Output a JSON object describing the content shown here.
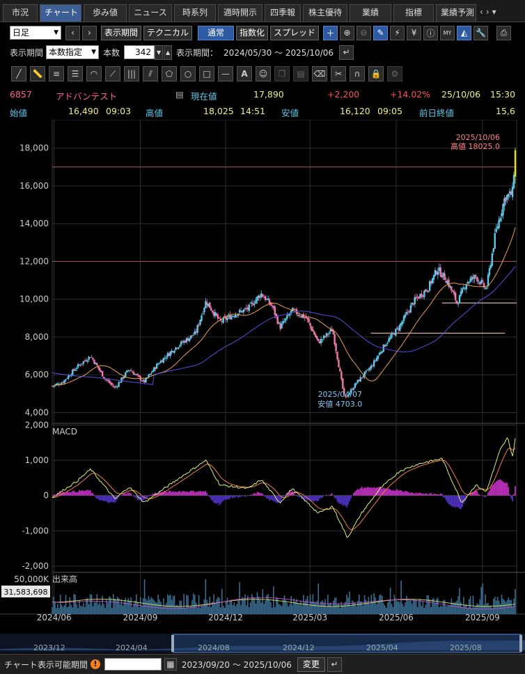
{
  "tabs": [
    "市況",
    "チャート",
    "歩み値",
    "ニュース",
    "時系列",
    "適時開示",
    "四季報",
    "株主優待",
    "業績",
    "指標",
    "業績予測"
  ],
  "active_tab": "チャート",
  "toolbar1": {
    "period_select": "日足",
    "display_period_btn": "表示期間",
    "technical_btn": "テクニカル",
    "normal_btn": "通常",
    "index_btn": "指数化",
    "spread_btn": "スプレッド",
    "icons": [
      "plus-icon",
      "zoom-in-icon",
      "zoom-out-icon",
      "pen-icon",
      "pattern-icon",
      "yen-icon",
      "info-icon",
      "my-chart-icon",
      "area-chart-icon",
      "settings-wrench-icon",
      "print-icon"
    ]
  },
  "toolbar2": {
    "period_label": "表示期間",
    "period_mode": "本数指定",
    "count_label": "本数",
    "count_value": "342",
    "range_label": "表示期間：",
    "range_value": "2024/05/30 ～ 2025/10/06"
  },
  "drawing_tools": [
    "line-tool-icon",
    "ruler-tool-icon",
    "h-lines-tool-icon",
    "fib-lines-tool-icon",
    "arc-tool-icon",
    "fan-tool-icon",
    "v-lines-tool-icon",
    "gann-tool-icon",
    "pentagon-tool-icon",
    "circle-tool-icon",
    "rect-tool-icon",
    "hline-tool-icon",
    "text-tool-icon",
    "icon-tool-icon",
    "copy-tool-icon",
    "paste-tool-icon",
    "erase-tool-icon",
    "erase-all-tool-icon",
    "magnet-tool-icon",
    "lock-tool-icon",
    "gear-tool-icon"
  ],
  "quote": {
    "code": "6857",
    "name": "アドバンテスト",
    "current_label": "現在値",
    "current_value": "17,890",
    "change": "+2,200",
    "change_pct": "+14.02%",
    "date": "25/10/06",
    "time": "15:30",
    "open_label": "始値",
    "open_value": "16,490",
    "open_time": "09:03",
    "high_label": "高値",
    "high_value": "18,025",
    "high_time": "14:51",
    "low_label": "安値",
    "low_value": "16,120",
    "low_time": "09:05",
    "prev_label": "前日終値",
    "prev_value": "15,6"
  },
  "colors": {
    "up": "#5ec8e8",
    "down": "#f07ab0",
    "ma_short": "#f0a050",
    "ma_long": "#5050e0",
    "macd": "#e0f070",
    "signal": "#f08050",
    "hist": "#c040a0",
    "price_text": "#f0f080",
    "positive": "#ff5050"
  },
  "chart_data": {
    "type": "candlestick",
    "title": "",
    "series_labels": [
      "MACD",
      "出来高"
    ],
    "x_ticks": [
      "2024/06",
      "2024/09",
      "2024/12",
      "2025/03",
      "2025/06",
      "2025/09"
    ],
    "y_ticks": [
      "18,000",
      "16,000",
      "14,000",
      "12,000",
      "10,000",
      "8,000",
      "6,000",
      "4,000"
    ],
    "ylim": [
      3500,
      19500
    ],
    "macd_ticks": [
      "2,000",
      "1,000",
      "0",
      "-1,000",
      "-2,000"
    ],
    "macd_ylim": [
      -2100,
      2050
    ],
    "volume_ticks": [
      "50,000K"
    ],
    "volume_current": "31,583,698",
    "annotations": {
      "high_date": "2025/10/06",
      "high_text": "高値 18025.0",
      "low_date": "2025/04/07",
      "low_text": "安値 4703.0"
    },
    "h_lines": [
      17000,
      12000
    ],
    "support_lines": [
      [
        9800,
        "2025/07"
      ],
      [
        8200,
        "2025/05"
      ]
    ],
    "price_anchors": [
      [
        "2024/05/30",
        5400
      ],
      [
        "2024/06/10",
        5600
      ],
      [
        "2024/06/25",
        6400
      ],
      [
        "2024/07/10",
        7000
      ],
      [
        "2024/07/25",
        5800
      ],
      [
        "2024/08/05",
        5300
      ],
      [
        "2024/08/20",
        6300
      ],
      [
        "2024/09/05",
        5600
      ],
      [
        "2024/09/20",
        6600
      ],
      [
        "2024/10/10",
        7500
      ],
      [
        "2024/10/30",
        8200
      ],
      [
        "2024/11/10",
        9900
      ],
      [
        "2024/11/25",
        8800
      ],
      [
        "2024/12/10",
        9200
      ],
      [
        "2024/12/25",
        9500
      ],
      [
        "2025/01/08",
        10300
      ],
      [
        "2025/01/20",
        9600
      ],
      [
        "2025/01/28",
        8500
      ],
      [
        "2025/02/10",
        9400
      ],
      [
        "2025/02/25",
        9000
      ],
      [
        "2025/03/10",
        7700
      ],
      [
        "2025/03/25",
        8400
      ],
      [
        "2025/04/07",
        4703
      ],
      [
        "2025/04/20",
        5600
      ],
      [
        "2025/05/05",
        6400
      ],
      [
        "2025/05/20",
        7600
      ],
      [
        "2025/06/05",
        8600
      ],
      [
        "2025/06/20",
        9900
      ],
      [
        "2025/07/05",
        10600
      ],
      [
        "2025/07/15",
        11600
      ],
      [
        "2025/07/25",
        11000
      ],
      [
        "2025/08/05",
        9800
      ],
      [
        "2025/08/15",
        10900
      ],
      [
        "2025/08/25",
        11200
      ],
      [
        "2025/09/05",
        10500
      ],
      [
        "2025/09/15",
        13500
      ],
      [
        "2025/09/25",
        15400
      ],
      [
        "2025/10/03",
        15600
      ],
      [
        "2025/10/06",
        17890
      ]
    ],
    "macd_anchors": [
      [
        "2024/05/30",
        -50
      ],
      [
        "2024/06/25",
        400
      ],
      [
        "2024/07/10",
        750
      ],
      [
        "2024/08/05",
        -100
      ],
      [
        "2024/08/20",
        250
      ],
      [
        "2024/09/05",
        -200
      ],
      [
        "2024/10/10",
        450
      ],
      [
        "2024/11/10",
        1000
      ],
      [
        "2024/11/25",
        300
      ],
      [
        "2024/12/25",
        200
      ],
      [
        "2025/01/08",
        450
      ],
      [
        "2025/01/28",
        -200
      ],
      [
        "2025/02/10",
        200
      ],
      [
        "2025/03/10",
        -500
      ],
      [
        "2025/03/25",
        -300
      ],
      [
        "2025/04/10",
        -1200
      ],
      [
        "2025/04/25",
        -500
      ],
      [
        "2025/05/15",
        200
      ],
      [
        "2025/06/05",
        700
      ],
      [
        "2025/06/25",
        900
      ],
      [
        "2025/07/20",
        1050
      ],
      [
        "2025/08/10",
        -200
      ],
      [
        "2025/08/25",
        300
      ],
      [
        "2025/09/05",
        100
      ],
      [
        "2025/09/20",
        1300
      ],
      [
        "2025/09/28",
        1650
      ],
      [
        "2025/10/03",
        1100
      ],
      [
        "2025/10/06",
        1600
      ]
    ]
  },
  "navigator": {
    "ticks": [
      "2023/12",
      "2024/04",
      "2024/08",
      "2024/12",
      "2025/04",
      "2025/08"
    ]
  },
  "bottom": {
    "label": "チャート表示可能期間",
    "range": "2023/09/20 ～ 2025/10/06",
    "change_btn": "変更"
  }
}
